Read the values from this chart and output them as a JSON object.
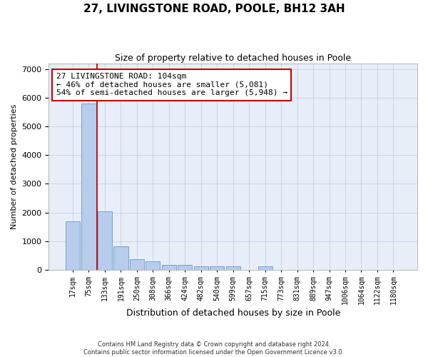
{
  "title1": "27, LIVINGSTONE ROAD, POOLE, BH12 3AH",
  "title2": "Size of property relative to detached houses in Poole",
  "xlabel": "Distribution of detached houses by size in Poole",
  "ylabel": "Number of detached properties",
  "bin_labels": [
    "17sqm",
    "75sqm",
    "133sqm",
    "191sqm",
    "250sqm",
    "308sqm",
    "366sqm",
    "424sqm",
    "482sqm",
    "540sqm",
    "599sqm",
    "657sqm",
    "715sqm",
    "773sqm",
    "831sqm",
    "889sqm",
    "947sqm",
    "1006sqm",
    "1064sqm",
    "1122sqm",
    "1180sqm"
  ],
  "bar_heights": [
    1700,
    5800,
    2050,
    820,
    370,
    290,
    175,
    155,
    120,
    115,
    105,
    0,
    105,
    0,
    0,
    0,
    0,
    0,
    0,
    0,
    0
  ],
  "bar_color": "#b8cceb",
  "bar_edge_color": "#6699cc",
  "grid_color": "#c8d4e8",
  "background_color": "#e8eef8",
  "property_line_x": 1.5,
  "property_line_color": "#cc0000",
  "annotation_text": "27 LIVINGSTONE ROAD: 104sqm\n← 46% of detached houses are smaller (5,081)\n54% of semi-detached houses are larger (5,948) →",
  "ylim": [
    0,
    7200
  ],
  "yticks": [
    0,
    1000,
    2000,
    3000,
    4000,
    5000,
    6000,
    7000
  ],
  "footnote": "Contains HM Land Registry data © Crown copyright and database right 2024.\nContains public sector information licensed under the Open Government Licence v3.0.",
  "title1_fontsize": 11,
  "title2_fontsize": 9,
  "xlabel_fontsize": 9,
  "ylabel_fontsize": 8,
  "annot_fontsize": 8,
  "tick_fontsize": 7
}
